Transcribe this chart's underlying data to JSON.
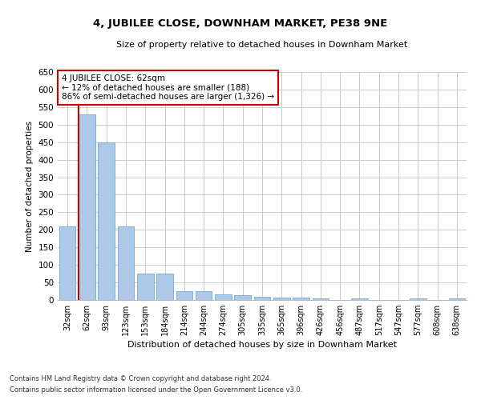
{
  "title": "4, JUBILEE CLOSE, DOWNHAM MARKET, PE38 9NE",
  "subtitle": "Size of property relative to detached houses in Downham Market",
  "xlabel": "Distribution of detached houses by size in Downham Market",
  "ylabel": "Number of detached properties",
  "footnote1": "Contains HM Land Registry data © Crown copyright and database right 2024.",
  "footnote2": "Contains public sector information licensed under the Open Government Licence v3.0.",
  "annotation_line1": "4 JUBILEE CLOSE: 62sqm",
  "annotation_line2": "← 12% of detached houses are smaller (188)",
  "annotation_line3": "86% of semi-detached houses are larger (1,326) →",
  "categories": [
    "32sqm",
    "62sqm",
    "93sqm",
    "123sqm",
    "153sqm",
    "184sqm",
    "214sqm",
    "244sqm",
    "274sqm",
    "305sqm",
    "335sqm",
    "365sqm",
    "396sqm",
    "426sqm",
    "456sqm",
    "487sqm",
    "517sqm",
    "547sqm",
    "577sqm",
    "608sqm",
    "638sqm"
  ],
  "values": [
    210,
    530,
    450,
    210,
    75,
    75,
    25,
    25,
    15,
    13,
    10,
    7,
    7,
    5,
    0,
    5,
    0,
    0,
    5,
    0,
    5
  ],
  "bar_color": "#aec9e8",
  "bar_edge_color": "#6aaad4",
  "highlight_line_color": "#cc0000",
  "highlight_bar_index": 1,
  "ylim": [
    0,
    650
  ],
  "yticks": [
    0,
    50,
    100,
    150,
    200,
    250,
    300,
    350,
    400,
    450,
    500,
    550,
    600,
    650
  ],
  "background_color": "#ffffff",
  "grid_color": "#cccccc",
  "annotation_box_color": "#ffffff",
  "annotation_box_edge": "#cc0000",
  "fig_width": 6.0,
  "fig_height": 5.0,
  "dpi": 100
}
